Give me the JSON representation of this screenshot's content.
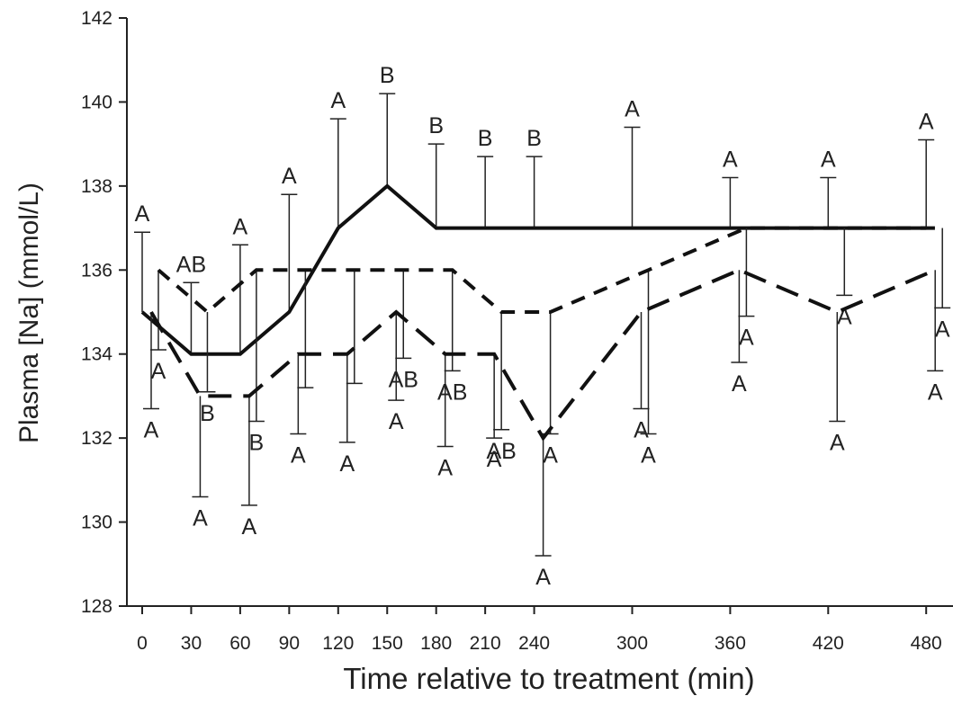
{
  "chart_data": {
    "type": "line",
    "title": "",
    "xlabel": "Time relative to treatment (min)",
    "ylabel": "Plasma [Na] (mmol/L)",
    "x": [
      0,
      30,
      60,
      90,
      120,
      150,
      180,
      210,
      240,
      300,
      360,
      420,
      480
    ],
    "x_tick_labels": [
      "0",
      "30",
      "60",
      "90",
      "120",
      "150",
      "180",
      "210",
      "240",
      "300",
      "360",
      "420",
      "480"
    ],
    "ylim": [
      128,
      142
    ],
    "y_ticks": [
      128,
      130,
      132,
      134,
      136,
      138,
      140,
      142
    ],
    "grid": false,
    "legend": "none",
    "series": [
      {
        "style": "solid",
        "values": [
          135,
          134,
          134,
          135,
          137,
          138,
          137,
          137,
          137,
          137,
          137,
          137,
          137
        ],
        "error_dir": "up",
        "error_bars": [
          136.9,
          135.7,
          136.6,
          137.8,
          139.6,
          140.2,
          139.0,
          138.7,
          138.7,
          139.4,
          138.2,
          138.2,
          139.1
        ],
        "labels": [
          "A",
          "AB",
          "A",
          "A",
          "A",
          "B",
          "B",
          "B",
          "B",
          "A",
          "A",
          "A",
          "A"
        ]
      },
      {
        "style": "dashed-short",
        "values": [
          136,
          135,
          136,
          136,
          136,
          136,
          136,
          135,
          135,
          136,
          137,
          137,
          137
        ],
        "error_dir": "down",
        "error_bars": [
          134.1,
          133.1,
          132.4,
          133.2,
          133.3,
          133.9,
          133.6,
          132.2,
          132.1,
          132.1,
          134.9,
          135.4,
          135.1
        ],
        "labels": [
          "A",
          "B",
          "B",
          "",
          "",
          "AB",
          "AB",
          "AB",
          "A",
          "A",
          "A",
          "A",
          "A"
        ]
      },
      {
        "style": "dashed-long",
        "values": [
          135,
          133,
          133,
          134,
          134,
          135,
          134,
          134,
          132,
          135,
          136,
          135,
          136
        ],
        "error_dir": "down",
        "error_bars": [
          132.7,
          130.6,
          130.4,
          132.1,
          131.9,
          132.9,
          131.8,
          132.0,
          129.2,
          132.7,
          133.8,
          132.4,
          133.6
        ],
        "labels": [
          "A",
          "A",
          "A",
          "A",
          "A",
          "A",
          "A",
          "A",
          "A",
          "A",
          "A",
          "A",
          "A"
        ]
      }
    ]
  }
}
